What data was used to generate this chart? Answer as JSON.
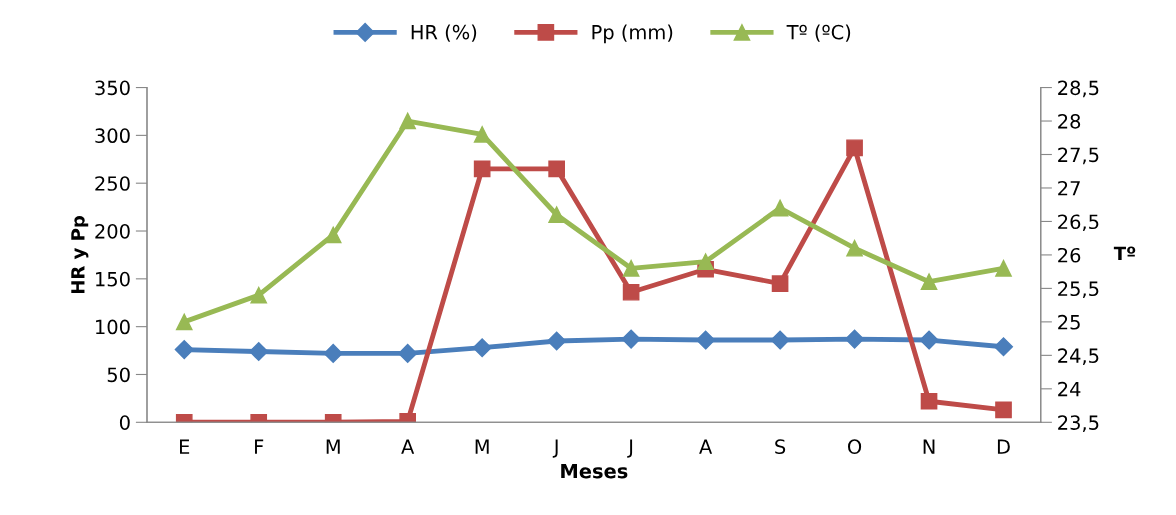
{
  "chart_data": {
    "type": "line",
    "xlabel": "Meses",
    "ylabel": "HR y Pp",
    "y2label": "Tº",
    "categories": [
      "E",
      "F",
      "M",
      "A",
      "M",
      "J",
      "J",
      "A",
      "S",
      "O",
      "N",
      "D"
    ],
    "series": [
      {
        "name": "HR (%)",
        "color": "#4a7ebb",
        "marker": "diamond",
        "values": [
          76,
          74,
          72,
          72,
          78,
          85,
          87,
          86,
          86,
          87,
          86,
          79
        ]
      },
      {
        "name": "Pp (mm)",
        "color": "#be4b48",
        "marker": "square",
        "values": [
          0,
          0,
          0,
          1,
          265,
          265,
          136,
          160,
          145,
          287,
          22,
          13
        ]
      },
      {
        "name": "Tº (ºC)",
        "color": "#98b954",
        "marker": "triangle",
        "axis": "y2",
        "values": [
          25.0,
          25.4,
          26.3,
          28.0,
          27.8,
          26.6,
          25.8,
          25.9,
          26.7,
          26.1,
          25.6,
          25.8
        ]
      }
    ],
    "ylim": [
      0,
      350
    ],
    "yticks": [
      0,
      50,
      100,
      150,
      200,
      250,
      300,
      350
    ],
    "y2lim": [
      23.5,
      28.5
    ],
    "y2ticks": [
      {
        "value": 23.5,
        "label": "23,5"
      },
      24,
      {
        "value": 24.5,
        "label": "24,5"
      },
      25,
      {
        "value": 25.5,
        "label": "25,5"
      },
      26,
      {
        "value": 26.5,
        "label": "26,5"
      },
      27,
      {
        "value": 27.5,
        "label": "27,5"
      },
      28,
      {
        "value": 28.5,
        "label": "28,5"
      }
    ],
    "grid": false,
    "legend": "top",
    "line_style": "solid"
  }
}
